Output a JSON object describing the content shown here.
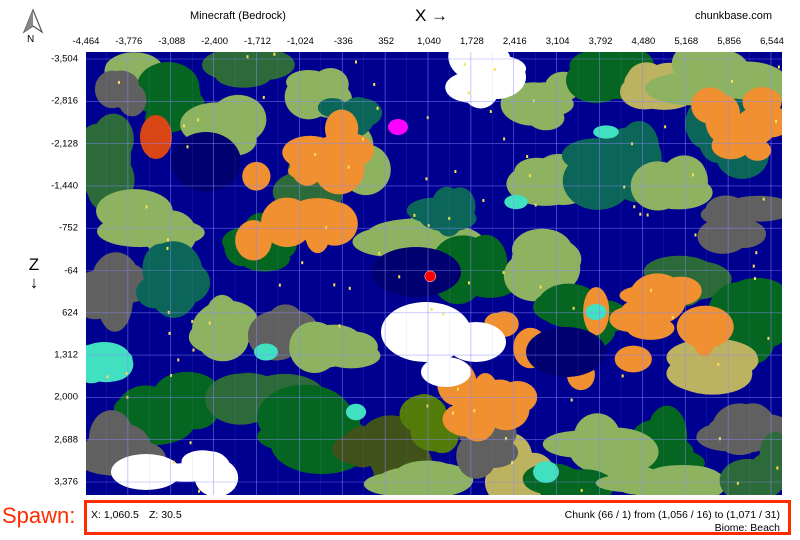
{
  "header": {
    "title": "Minecraft (Bedrock)",
    "x_axis_label": "X →",
    "site": "chunkbase.com",
    "compass_label": "N"
  },
  "x_ticks": [
    "-4,464",
    "-3,776",
    "-3,088",
    "-2,400",
    "-1,712",
    "-1,024",
    "-336",
    "352",
    "1,040",
    "1,728",
    "2,416",
    "3,104",
    "3,792",
    "4,480",
    "5,168",
    "5,856",
    "6,544"
  ],
  "z_ticks": [
    "-3,504",
    "-2,816",
    "-2,128",
    "-1,440",
    "-752",
    "-64",
    "624",
    "1,312",
    "2,000",
    "2,688",
    "3,376"
  ],
  "z_axis_label": "Z ↓",
  "spawn_marker": {
    "x": 1060.5,
    "z": 30.5,
    "color": "#ff0000"
  },
  "footer": {
    "spawn_label": "Spawn:",
    "x_coord": "X: 1,060.5",
    "z_coord": "Z: 30.5",
    "chunk_info": "Chunk (66 / 1) from (1,056 / 16) to (1,071 / 31)",
    "biome": "Biome: Beach",
    "highlight_color": "#ff2a00"
  },
  "biome_colors": {
    "ocean": "#000090",
    "deep_ocean": "#000070",
    "plains": "#8db360",
    "forest": "#056621",
    "taiga": "#0b6659",
    "savanna": "#bdb25f",
    "mesa": "#d94515",
    "mesa_orange": "#f09030",
    "snowy": "#ffffff",
    "mountains": "#606060",
    "jungle": "#537b09",
    "beach": "#fade55",
    "mushroom": "#ff00ff",
    "ice": "#40e0c0",
    "swamp": "#2d6a3a",
    "dark_forest": "#40511a"
  }
}
